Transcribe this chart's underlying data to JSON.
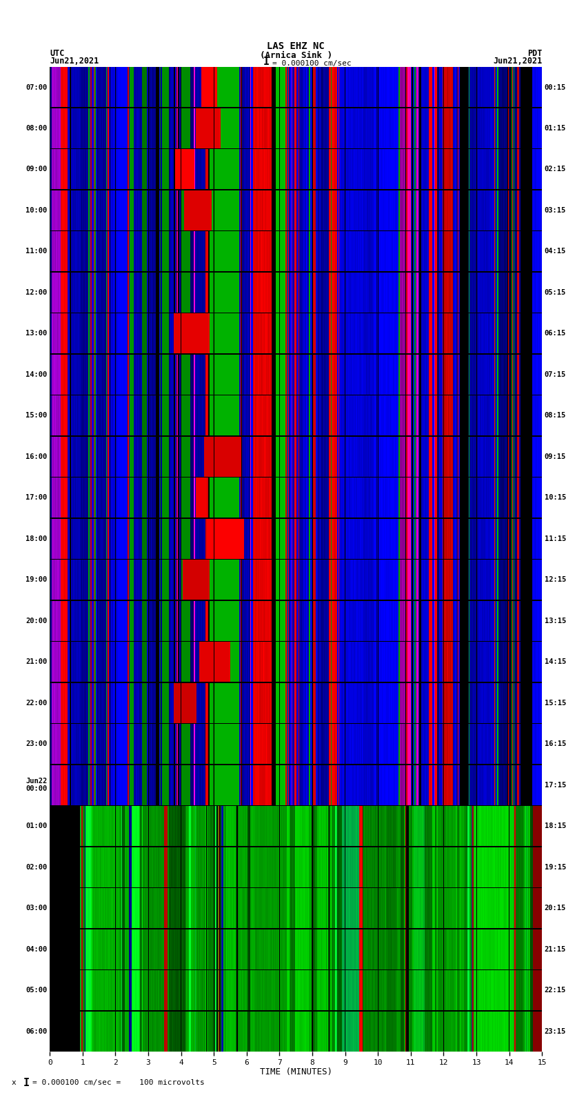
{
  "title_line1": "LAS EHZ NC",
  "title_line2": "(Arnica Sink )",
  "scale_label": "= 0.000100 cm/sec",
  "bottom_scale_label": "= 0.000100 cm/sec =    100 microvolts",
  "utc_label": "UTC",
  "utc_date": "Jun21,2021",
  "pdt_label": "PDT",
  "pdt_date": "Jun21,2021",
  "xlabel": "TIME (MINUTES)",
  "left_times": [
    "07:00",
    "08:00",
    "09:00",
    "10:00",
    "11:00",
    "12:00",
    "13:00",
    "14:00",
    "15:00",
    "16:00",
    "17:00",
    "18:00",
    "19:00",
    "20:00",
    "21:00",
    "22:00",
    "23:00",
    "Jun22\n00:00",
    "01:00",
    "02:00",
    "03:00",
    "04:00",
    "05:00",
    "06:00"
  ],
  "right_times": [
    "00:15",
    "01:15",
    "02:15",
    "03:15",
    "04:15",
    "05:15",
    "06:15",
    "07:15",
    "08:15",
    "09:15",
    "10:15",
    "11:15",
    "12:15",
    "13:15",
    "14:15",
    "15:15",
    "16:15",
    "17:15",
    "18:15",
    "19:15",
    "20:15",
    "21:15",
    "22:15",
    "23:15"
  ],
  "num_rows": 24,
  "num_cols": 15,
  "green_transition_row": 18,
  "fig_bg": "#ffffff",
  "seed": 12345
}
